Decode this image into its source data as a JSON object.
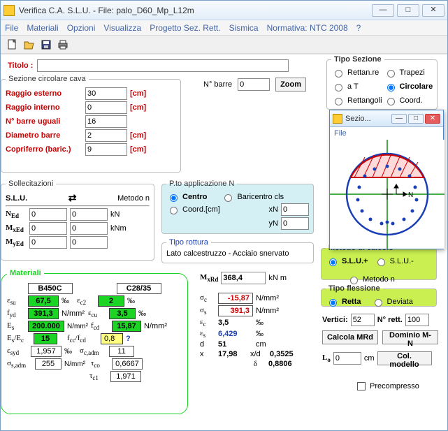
{
  "window": {
    "title": "Verifica C.A. S.L.U. - File: palo_D60_Mp_L12m",
    "min": "—",
    "max": "□",
    "close": "✕"
  },
  "menubar": [
    "File",
    "Materiali",
    "Opzioni",
    "Visualizza",
    "Progetto Sez. Rett.",
    "Sismica",
    "Normativa: NTC 2008",
    "?"
  ],
  "titolo": {
    "label": "Titolo :",
    "value": ""
  },
  "sezione_cava": {
    "legend": "Sezione circolare cava",
    "rows": [
      {
        "label": "Raggio esterno",
        "value": "30",
        "unit": "[cm]"
      },
      {
        "label": "Raggio interno",
        "value": "0",
        "unit": "[cm]"
      },
      {
        "label": "N° barre uguali",
        "value": "16",
        "unit": ""
      },
      {
        "label": "Diametro barre",
        "value": "2",
        "unit": "[cm]"
      },
      {
        "label": "Copriferro (baric.)",
        "value": "9",
        "unit": "[cm]"
      }
    ]
  },
  "nbarre": {
    "label": "N° barre",
    "value": "0",
    "zoom": "Zoom"
  },
  "tipo_sezione": {
    "legend": "Tipo Sezione",
    "options": [
      "Rettan.re",
      "Trapezi",
      "a T",
      "Circolare",
      "Rettangoli",
      "Coord."
    ],
    "selected": "Circolare"
  },
  "sollecitazioni": {
    "legend": "Sollecitazioni",
    "slu": "S.L.U.",
    "metodo": "Metodo n",
    "rows": [
      {
        "sym": "N",
        "sub": "Ed",
        "v1": "0",
        "v2": "0",
        "unit": "kN"
      },
      {
        "sym": "M",
        "sub": "xEd",
        "v1": "0",
        "v2": "0",
        "unit": "kNm"
      },
      {
        "sym": "M",
        "sub": "yEd",
        "v1": "0",
        "v2": "0",
        "unit": ""
      }
    ]
  },
  "pto_applicazione": {
    "legend": "P.to applicazione N",
    "centro": "Centro",
    "baricentro": "Baricentro cls",
    "coord": "Coord.[cm]",
    "xN": "xN",
    "yN": "yN",
    "xN_val": "0",
    "yN_val": "0"
  },
  "tipo_rottura": {
    "legend": "Tipo rottura",
    "text": "Lato calcestruzzo - Acciaio snervato"
  },
  "materiali": {
    "legend": "Materiali",
    "steel": "B450C",
    "concrete": "C28/35",
    "eps_su": "67,5",
    "eps_c2": "2",
    "fyd": "391,3",
    "eps_cu": "3,5",
    "Es": "200.000",
    "fcd": "15,87",
    "EsEc": "15",
    "fcc_fcd": "0,8",
    "eps_syd": "1,957",
    "sigma_c_adm": "11",
    "sigma_s_adm": "255",
    "tau_co": "0,6667",
    "tau_c1": "1,971",
    "permille": "‰",
    "nmm2": "N/mm²"
  },
  "mxrd": {
    "label": "M",
    "sub": "xRd",
    "value": "368,4",
    "unit": "kN m"
  },
  "results": {
    "sigma_c": {
      "sym": "σc",
      "val": "-15,87",
      "unit": "N/mm²",
      "color": "#c00"
    },
    "sigma_s": {
      "sym": "σs",
      "val": "391,3",
      "unit": "N/mm²",
      "color": "#c00"
    },
    "eps_c": {
      "sym": "εc",
      "val": "3,5",
      "unit": "‰",
      "color": "#000"
    },
    "eps_s": {
      "sym": "εs",
      "val": "6,429",
      "unit": "‰",
      "color": "#1a3fb5"
    },
    "d": {
      "sym": "d",
      "val": "51",
      "unit": "cm"
    },
    "x": {
      "sym": "x",
      "val": "17,98",
      "xd": "x/d",
      "xd_val": "0,3525"
    },
    "delta": {
      "sym": "δ",
      "val": "0,8806"
    }
  },
  "metodo_calcolo": {
    "legend": "Metodo di calcolo",
    "opts": [
      "S.L.U.+",
      "S.L.U.-",
      "Metodo n"
    ],
    "selected": "S.L.U.+"
  },
  "tipo_flessione": {
    "legend": "Tipo flessione",
    "opts": [
      "Retta",
      "Deviata"
    ],
    "selected": "Retta"
  },
  "vertici": {
    "label": "Vertici:",
    "value": "52",
    "nrett": "N° rett.",
    "nrett_val": "100"
  },
  "buttons": {
    "calcola": "Calcola MRd",
    "dominio": "Dominio M-N",
    "colmodello": "Col. modello"
  },
  "lo": {
    "label": "Lo",
    "value": "0",
    "unit": "cm"
  },
  "precompresso": "Precompresso",
  "sezio": {
    "title": "Sezio...",
    "file": "File",
    "N": "N"
  }
}
